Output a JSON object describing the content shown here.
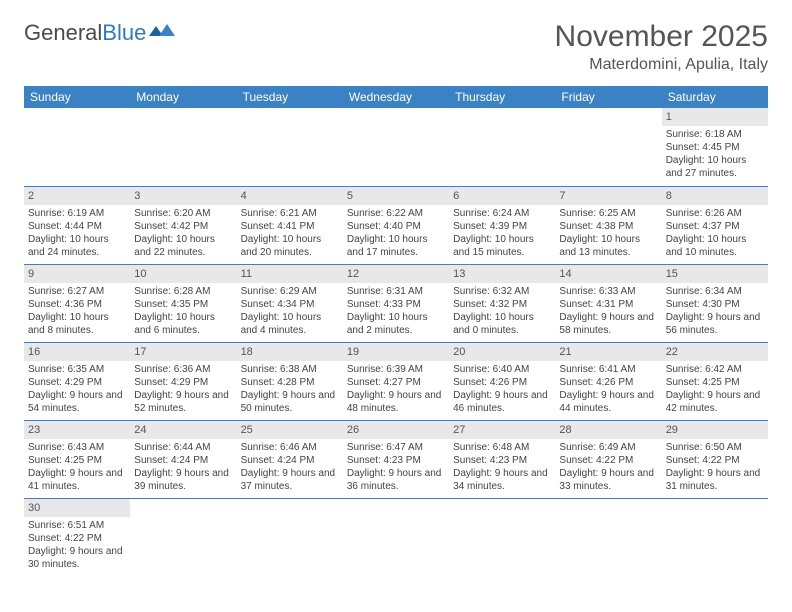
{
  "logo": {
    "word1": "General",
    "word2": "Blue"
  },
  "title": "November 2025",
  "location": "Materdomini, Apulia, Italy",
  "colors": {
    "header_bg": "#3a82c4",
    "header_text": "#ffffff",
    "daynum_bg": "#e8e8e8",
    "cell_border": "#3a82c4",
    "title_color": "#555555",
    "logo_gray": "#4a4a4a",
    "logo_blue": "#2f7bbf"
  },
  "day_headers": [
    "Sunday",
    "Monday",
    "Tuesday",
    "Wednesday",
    "Thursday",
    "Friday",
    "Saturday"
  ],
  "weeks": [
    [
      null,
      null,
      null,
      null,
      null,
      null,
      {
        "n": "1",
        "sr": "Sunrise: 6:18 AM",
        "ss": "Sunset: 4:45 PM",
        "dl": "Daylight: 10 hours and 27 minutes."
      }
    ],
    [
      {
        "n": "2",
        "sr": "Sunrise: 6:19 AM",
        "ss": "Sunset: 4:44 PM",
        "dl": "Daylight: 10 hours and 24 minutes."
      },
      {
        "n": "3",
        "sr": "Sunrise: 6:20 AM",
        "ss": "Sunset: 4:42 PM",
        "dl": "Daylight: 10 hours and 22 minutes."
      },
      {
        "n": "4",
        "sr": "Sunrise: 6:21 AM",
        "ss": "Sunset: 4:41 PM",
        "dl": "Daylight: 10 hours and 20 minutes."
      },
      {
        "n": "5",
        "sr": "Sunrise: 6:22 AM",
        "ss": "Sunset: 4:40 PM",
        "dl": "Daylight: 10 hours and 17 minutes."
      },
      {
        "n": "6",
        "sr": "Sunrise: 6:24 AM",
        "ss": "Sunset: 4:39 PM",
        "dl": "Daylight: 10 hours and 15 minutes."
      },
      {
        "n": "7",
        "sr": "Sunrise: 6:25 AM",
        "ss": "Sunset: 4:38 PM",
        "dl": "Daylight: 10 hours and 13 minutes."
      },
      {
        "n": "8",
        "sr": "Sunrise: 6:26 AM",
        "ss": "Sunset: 4:37 PM",
        "dl": "Daylight: 10 hours and 10 minutes."
      }
    ],
    [
      {
        "n": "9",
        "sr": "Sunrise: 6:27 AM",
        "ss": "Sunset: 4:36 PM",
        "dl": "Daylight: 10 hours and 8 minutes."
      },
      {
        "n": "10",
        "sr": "Sunrise: 6:28 AM",
        "ss": "Sunset: 4:35 PM",
        "dl": "Daylight: 10 hours and 6 minutes."
      },
      {
        "n": "11",
        "sr": "Sunrise: 6:29 AM",
        "ss": "Sunset: 4:34 PM",
        "dl": "Daylight: 10 hours and 4 minutes."
      },
      {
        "n": "12",
        "sr": "Sunrise: 6:31 AM",
        "ss": "Sunset: 4:33 PM",
        "dl": "Daylight: 10 hours and 2 minutes."
      },
      {
        "n": "13",
        "sr": "Sunrise: 6:32 AM",
        "ss": "Sunset: 4:32 PM",
        "dl": "Daylight: 10 hours and 0 minutes."
      },
      {
        "n": "14",
        "sr": "Sunrise: 6:33 AM",
        "ss": "Sunset: 4:31 PM",
        "dl": "Daylight: 9 hours and 58 minutes."
      },
      {
        "n": "15",
        "sr": "Sunrise: 6:34 AM",
        "ss": "Sunset: 4:30 PM",
        "dl": "Daylight: 9 hours and 56 minutes."
      }
    ],
    [
      {
        "n": "16",
        "sr": "Sunrise: 6:35 AM",
        "ss": "Sunset: 4:29 PM",
        "dl": "Daylight: 9 hours and 54 minutes."
      },
      {
        "n": "17",
        "sr": "Sunrise: 6:36 AM",
        "ss": "Sunset: 4:29 PM",
        "dl": "Daylight: 9 hours and 52 minutes."
      },
      {
        "n": "18",
        "sr": "Sunrise: 6:38 AM",
        "ss": "Sunset: 4:28 PM",
        "dl": "Daylight: 9 hours and 50 minutes."
      },
      {
        "n": "19",
        "sr": "Sunrise: 6:39 AM",
        "ss": "Sunset: 4:27 PM",
        "dl": "Daylight: 9 hours and 48 minutes."
      },
      {
        "n": "20",
        "sr": "Sunrise: 6:40 AM",
        "ss": "Sunset: 4:26 PM",
        "dl": "Daylight: 9 hours and 46 minutes."
      },
      {
        "n": "21",
        "sr": "Sunrise: 6:41 AM",
        "ss": "Sunset: 4:26 PM",
        "dl": "Daylight: 9 hours and 44 minutes."
      },
      {
        "n": "22",
        "sr": "Sunrise: 6:42 AM",
        "ss": "Sunset: 4:25 PM",
        "dl": "Daylight: 9 hours and 42 minutes."
      }
    ],
    [
      {
        "n": "23",
        "sr": "Sunrise: 6:43 AM",
        "ss": "Sunset: 4:25 PM",
        "dl": "Daylight: 9 hours and 41 minutes."
      },
      {
        "n": "24",
        "sr": "Sunrise: 6:44 AM",
        "ss": "Sunset: 4:24 PM",
        "dl": "Daylight: 9 hours and 39 minutes."
      },
      {
        "n": "25",
        "sr": "Sunrise: 6:46 AM",
        "ss": "Sunset: 4:24 PM",
        "dl": "Daylight: 9 hours and 37 minutes."
      },
      {
        "n": "26",
        "sr": "Sunrise: 6:47 AM",
        "ss": "Sunset: 4:23 PM",
        "dl": "Daylight: 9 hours and 36 minutes."
      },
      {
        "n": "27",
        "sr": "Sunrise: 6:48 AM",
        "ss": "Sunset: 4:23 PM",
        "dl": "Daylight: 9 hours and 34 minutes."
      },
      {
        "n": "28",
        "sr": "Sunrise: 6:49 AM",
        "ss": "Sunset: 4:22 PM",
        "dl": "Daylight: 9 hours and 33 minutes."
      },
      {
        "n": "29",
        "sr": "Sunrise: 6:50 AM",
        "ss": "Sunset: 4:22 PM",
        "dl": "Daylight: 9 hours and 31 minutes."
      }
    ],
    [
      {
        "n": "30",
        "sr": "Sunrise: 6:51 AM",
        "ss": "Sunset: 4:22 PM",
        "dl": "Daylight: 9 hours and 30 minutes."
      },
      null,
      null,
      null,
      null,
      null,
      null
    ]
  ]
}
